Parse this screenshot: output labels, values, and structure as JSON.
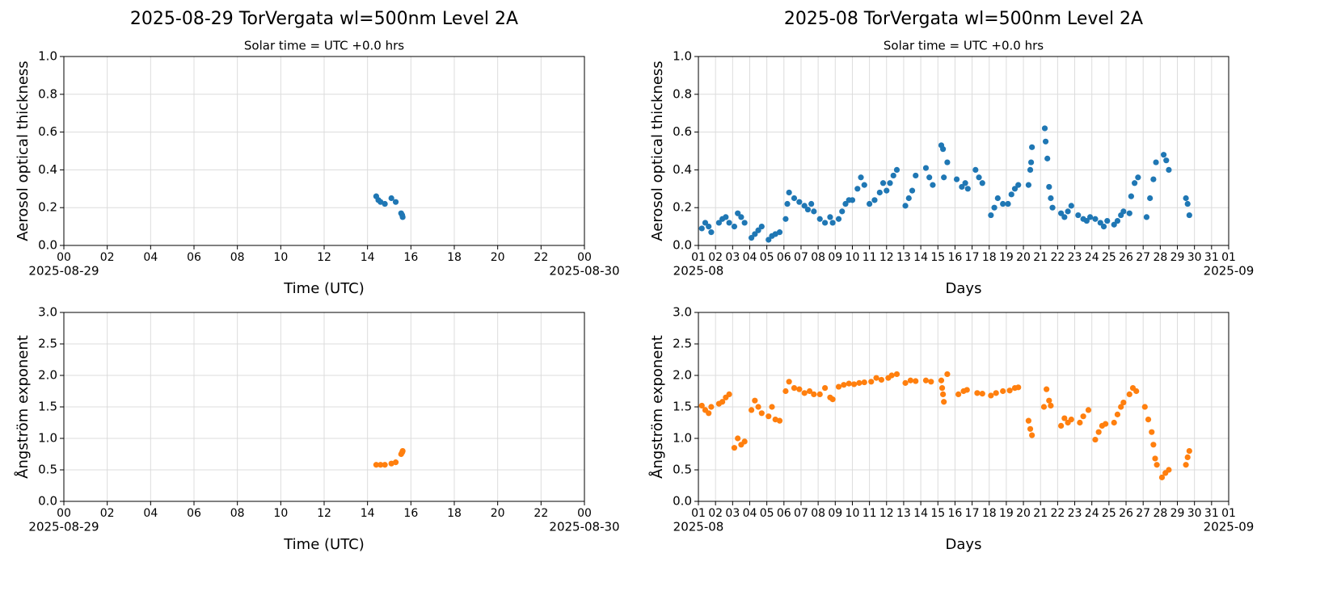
{
  "chart_data": [
    {
      "type": "scatter",
      "title": "2025-08-29  TorVergata  wl=500nm  Level 2A",
      "subtitle": "Solar time = UTC +0.0 hrs",
      "xlabel": "Time (UTC)",
      "ylabel": "Aerosol optical thickness",
      "color": "#1f77b4",
      "grid": true,
      "xlim": [
        0,
        24
      ],
      "ylim": [
        0,
        1
      ],
      "xticks": [
        {
          "value": 0,
          "label": "00"
        },
        {
          "value": 2,
          "label": "02"
        },
        {
          "value": 4,
          "label": "04"
        },
        {
          "value": 6,
          "label": "06"
        },
        {
          "value": 8,
          "label": "08"
        },
        10,
        12,
        14,
        16,
        18,
        20,
        22,
        {
          "value": 24,
          "label": "00"
        }
      ],
      "xdate_labels": [
        {
          "value": 0,
          "label": "2025-08-29"
        },
        {
          "value": 24,
          "label": "2025-08-30"
        }
      ],
      "yticks": [
        {
          "value": 0,
          "label": "0.0"
        },
        0.2,
        0.4,
        0.6,
        0.8,
        {
          "value": 1,
          "label": "1.0"
        }
      ],
      "x": [
        14.4,
        14.5,
        14.6,
        14.8,
        15.1,
        15.3,
        15.55,
        15.6,
        15.62
      ],
      "values": [
        0.26,
        0.24,
        0.23,
        0.22,
        0.25,
        0.23,
        0.17,
        0.16,
        0.15
      ]
    },
    {
      "type": "scatter",
      "title": "2025-08  TorVergata  wl=500nm  Level 2A",
      "subtitle": "Solar time = UTC +0.0 hrs",
      "xlabel": "Days",
      "ylabel": "Aerosol optical thickness",
      "color": "#1f77b4",
      "grid": true,
      "xlim": [
        1,
        32
      ],
      "ylim": [
        0,
        1
      ],
      "xticks": [
        {
          "value": 1,
          "label": "01"
        },
        {
          "value": 2,
          "label": "02"
        },
        {
          "value": 3,
          "label": "03"
        },
        {
          "value": 4,
          "label": "04"
        },
        {
          "value": 5,
          "label": "05"
        },
        {
          "value": 6,
          "label": "06"
        },
        {
          "value": 7,
          "label": "07"
        },
        {
          "value": 8,
          "label": "08"
        },
        {
          "value": 9,
          "label": "09"
        },
        10,
        11,
        12,
        13,
        14,
        15,
        16,
        17,
        18,
        19,
        20,
        21,
        22,
        23,
        24,
        25,
        26,
        27,
        28,
        29,
        30,
        31,
        {
          "value": 32,
          "label": "01"
        }
      ],
      "xdate_labels": [
        {
          "value": 1,
          "label": "2025-08"
        },
        {
          "value": 32,
          "label": "2025-09"
        }
      ],
      "yticks": [
        {
          "value": 0,
          "label": "0.0"
        },
        0.2,
        0.4,
        0.6,
        0.8,
        {
          "value": 1,
          "label": "1.0"
        }
      ],
      "x": [
        1.2,
        1.4,
        1.6,
        1.75,
        2.2,
        2.4,
        2.6,
        2.8,
        3.1,
        3.3,
        3.5,
        3.7,
        4.1,
        4.3,
        4.5,
        4.7,
        5.1,
        5.3,
        5.5,
        5.75,
        6.1,
        6.2,
        6.3,
        6.6,
        6.9,
        7.2,
        7.4,
        7.6,
        7.75,
        8.1,
        8.4,
        8.7,
        8.85,
        9.2,
        9.4,
        9.6,
        9.8,
        10.0,
        10.3,
        10.5,
        10.7,
        11.0,
        11.3,
        11.6,
        11.8,
        12.0,
        12.2,
        12.4,
        12.6,
        13.1,
        13.3,
        13.5,
        13.7,
        14.3,
        14.5,
        14.7,
        15.2,
        15.3,
        15.35,
        15.55,
        16.1,
        16.4,
        16.6,
        16.75,
        17.2,
        17.4,
        17.6,
        18.1,
        18.3,
        18.5,
        18.8,
        19.1,
        19.3,
        19.5,
        19.7,
        20.3,
        20.4,
        20.45,
        20.5,
        21.25,
        21.3,
        21.4,
        21.5,
        21.6,
        21.7,
        22.2,
        22.4,
        22.6,
        22.8,
        23.2,
        23.5,
        23.7,
        23.9,
        24.2,
        24.5,
        24.7,
        24.9,
        25.3,
        25.5,
        25.7,
        25.85,
        26.2,
        26.3,
        26.5,
        26.7,
        27.2,
        27.4,
        27.6,
        27.75,
        28.2,
        28.35,
        28.5,
        29.5,
        29.6,
        29.7
      ],
      "values": [
        0.09,
        0.12,
        0.1,
        0.07,
        0.12,
        0.14,
        0.15,
        0.12,
        0.1,
        0.17,
        0.15,
        0.12,
        0.04,
        0.06,
        0.08,
        0.1,
        0.03,
        0.05,
        0.06,
        0.07,
        0.14,
        0.22,
        0.28,
        0.25,
        0.23,
        0.21,
        0.19,
        0.22,
        0.18,
        0.14,
        0.12,
        0.15,
        0.12,
        0.14,
        0.18,
        0.22,
        0.24,
        0.24,
        0.3,
        0.36,
        0.32,
        0.22,
        0.24,
        0.28,
        0.33,
        0.29,
        0.33,
        0.37,
        0.4,
        0.21,
        0.25,
        0.29,
        0.37,
        0.41,
        0.36,
        0.32,
        0.53,
        0.51,
        0.36,
        0.44,
        0.35,
        0.31,
        0.33,
        0.3,
        0.4,
        0.36,
        0.33,
        0.16,
        0.2,
        0.25,
        0.22,
        0.22,
        0.27,
        0.3,
        0.32,
        0.32,
        0.4,
        0.44,
        0.52,
        0.62,
        0.55,
        0.46,
        0.31,
        0.25,
        0.2,
        0.17,
        0.15,
        0.18,
        0.21,
        0.16,
        0.14,
        0.13,
        0.15,
        0.14,
        0.12,
        0.1,
        0.13,
        0.11,
        0.13,
        0.16,
        0.18,
        0.17,
        0.26,
        0.33,
        0.36,
        0.15,
        0.25,
        0.35,
        0.44,
        0.48,
        0.45,
        0.4,
        0.25,
        0.22,
        0.16
      ]
    },
    {
      "type": "scatter",
      "xlabel": "Time (UTC)",
      "ylabel": "Ångström exponent",
      "color": "#ff7f0e",
      "grid": true,
      "xlim": [
        0,
        24
      ],
      "ylim": [
        0,
        3
      ],
      "xticks": [
        {
          "value": 0,
          "label": "00"
        },
        {
          "value": 2,
          "label": "02"
        },
        {
          "value": 4,
          "label": "04"
        },
        {
          "value": 6,
          "label": "06"
        },
        {
          "value": 8,
          "label": "08"
        },
        10,
        12,
        14,
        16,
        18,
        20,
        22,
        {
          "value": 24,
          "label": "00"
        }
      ],
      "xdate_labels": [
        {
          "value": 0,
          "label": "2025-08-29"
        },
        {
          "value": 24,
          "label": "2025-08-30"
        }
      ],
      "yticks": [
        {
          "value": 0,
          "label": "0.0"
        },
        0.5,
        {
          "value": 1,
          "label": "1.0"
        },
        1.5,
        {
          "value": 2,
          "label": "2.0"
        },
        2.5,
        {
          "value": 3,
          "label": "3.0"
        }
      ],
      "x": [
        14.4,
        14.6,
        14.8,
        15.1,
        15.3,
        15.55,
        15.6,
        15.62
      ],
      "values": [
        0.58,
        0.58,
        0.58,
        0.6,
        0.62,
        0.75,
        0.78,
        0.8
      ]
    },
    {
      "type": "scatter",
      "xlabel": "Days",
      "ylabel": "Ångström exponent",
      "color": "#ff7f0e",
      "grid": true,
      "xlim": [
        1,
        32
      ],
      "ylim": [
        0,
        3
      ],
      "xticks": [
        {
          "value": 1,
          "label": "01"
        },
        {
          "value": 2,
          "label": "02"
        },
        {
          "value": 3,
          "label": "03"
        },
        {
          "value": 4,
          "label": "04"
        },
        {
          "value": 5,
          "label": "05"
        },
        {
          "value": 6,
          "label": "06"
        },
        {
          "value": 7,
          "label": "07"
        },
        {
          "value": 8,
          "label": "08"
        },
        {
          "value": 9,
          "label": "09"
        },
        10,
        11,
        12,
        13,
        14,
        15,
        16,
        17,
        18,
        19,
        20,
        21,
        22,
        23,
        24,
        25,
        26,
        27,
        28,
        29,
        30,
        31,
        {
          "value": 32,
          "label": "01"
        }
      ],
      "xdate_labels": [
        {
          "value": 1,
          "label": "2025-08"
        },
        {
          "value": 32,
          "label": "2025-09"
        }
      ],
      "yticks": [
        {
          "value": 0,
          "label": "0.0"
        },
        0.5,
        {
          "value": 1,
          "label": "1.0"
        },
        1.5,
        {
          "value": 2,
          "label": "2.0"
        },
        2.5,
        {
          "value": 3,
          "label": "3.0"
        }
      ],
      "x": [
        1.2,
        1.4,
        1.6,
        1.75,
        2.2,
        2.4,
        2.6,
        2.8,
        3.1,
        3.3,
        3.5,
        3.7,
        4.1,
        4.3,
        4.5,
        4.7,
        5.1,
        5.3,
        5.5,
        5.75,
        6.1,
        6.3,
        6.6,
        6.9,
        7.2,
        7.5,
        7.75,
        8.1,
        8.4,
        8.7,
        8.85,
        9.2,
        9.5,
        9.8,
        10.1,
        10.4,
        10.7,
        11.1,
        11.4,
        11.7,
        12.1,
        12.3,
        12.6,
        13.1,
        13.4,
        13.7,
        14.3,
        14.6,
        15.2,
        15.25,
        15.3,
        15.35,
        15.55,
        16.2,
        16.5,
        16.7,
        17.3,
        17.6,
        18.1,
        18.4,
        18.8,
        19.2,
        19.5,
        19.7,
        20.3,
        20.4,
        20.5,
        21.2,
        21.35,
        21.5,
        21.6,
        22.2,
        22.4,
        22.6,
        22.8,
        23.3,
        23.5,
        23.8,
        24.2,
        24.4,
        24.6,
        24.8,
        25.3,
        25.5,
        25.7,
        25.85,
        26.2,
        26.4,
        26.6,
        27.1,
        27.3,
        27.5,
        27.6,
        27.7,
        27.8,
        28.1,
        28.3,
        28.5,
        29.5,
        29.6,
        29.7
      ],
      "values": [
        1.52,
        1.45,
        1.4,
        1.5,
        1.55,
        1.58,
        1.65,
        1.7,
        0.85,
        1.0,
        0.9,
        0.95,
        1.45,
        1.6,
        1.5,
        1.4,
        1.35,
        1.5,
        1.3,
        1.28,
        1.75,
        1.9,
        1.8,
        1.78,
        1.72,
        1.75,
        1.7,
        1.7,
        1.8,
        1.65,
        1.62,
        1.82,
        1.85,
        1.87,
        1.86,
        1.88,
        1.89,
        1.9,
        1.96,
        1.93,
        1.96,
        2.0,
        2.02,
        1.88,
        1.92,
        1.91,
        1.92,
        1.9,
        1.92,
        1.8,
        1.7,
        1.58,
        2.02,
        1.7,
        1.75,
        1.77,
        1.72,
        1.71,
        1.68,
        1.72,
        1.75,
        1.76,
        1.8,
        1.81,
        1.28,
        1.15,
        1.05,
        1.5,
        1.78,
        1.6,
        1.52,
        1.2,
        1.32,
        1.25,
        1.3,
        1.25,
        1.35,
        1.45,
        0.98,
        1.1,
        1.2,
        1.23,
        1.25,
        1.38,
        1.5,
        1.57,
        1.7,
        1.8,
        1.75,
        1.5,
        1.3,
        1.1,
        0.9,
        0.68,
        0.58,
        0.38,
        0.45,
        0.5,
        0.58,
        0.7,
        0.8
      ]
    }
  ]
}
